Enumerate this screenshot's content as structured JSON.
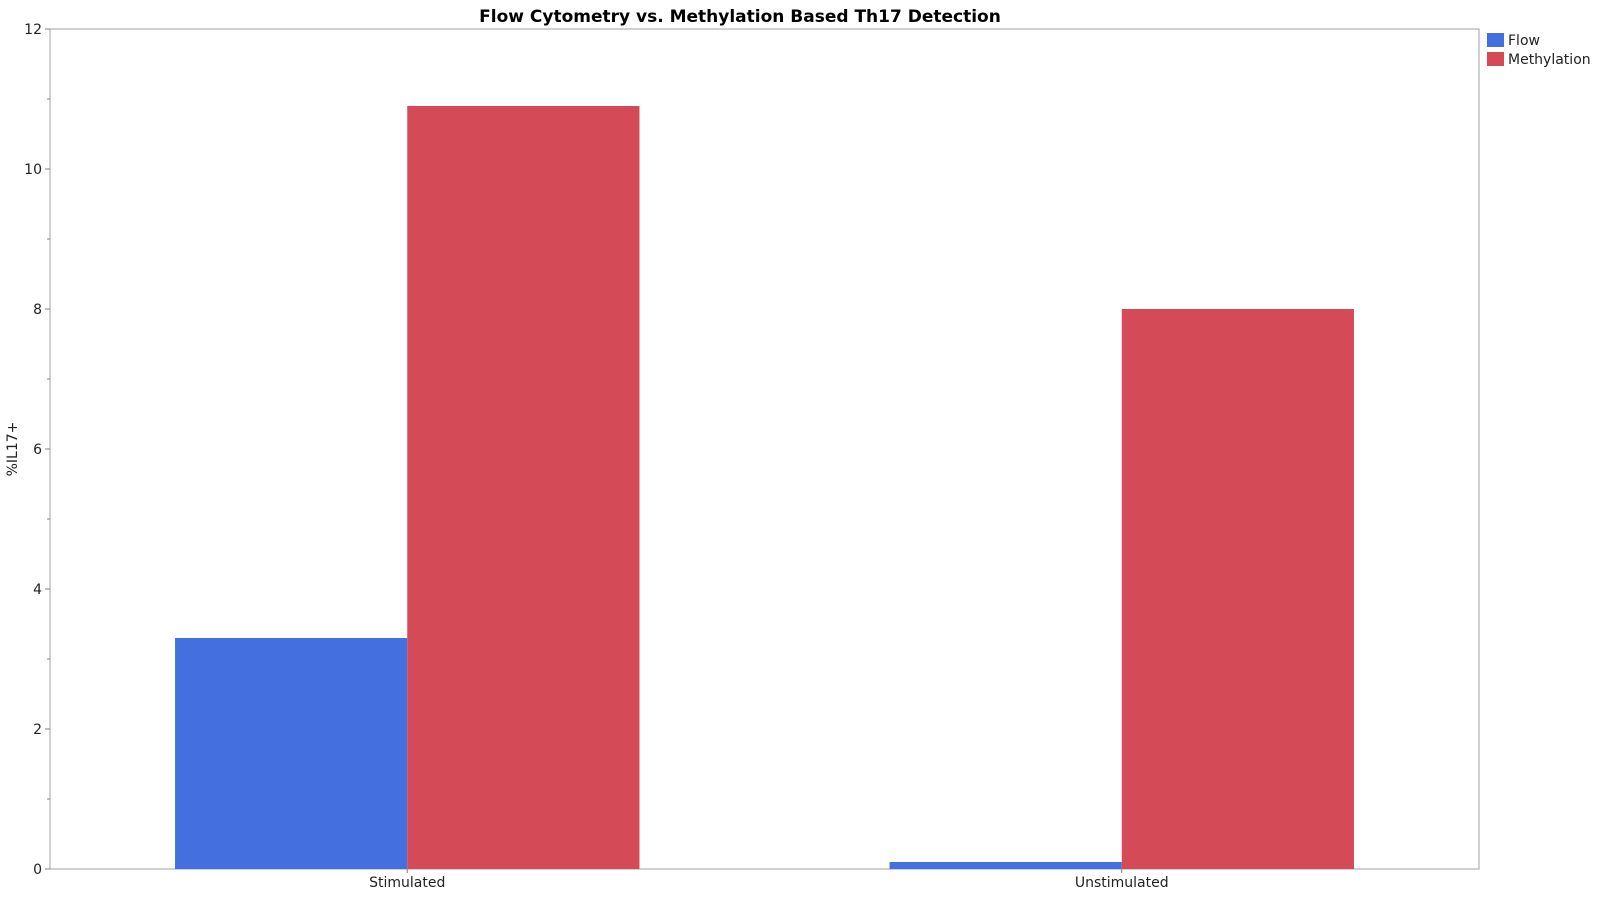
{
  "chart_data": {
    "type": "bar",
    "title": "Flow Cytometry vs. Methylation Based Th17 Detection",
    "xlabel": "",
    "ylabel": "%IL17+",
    "categories": [
      "Stimulated",
      "Unstimulated"
    ],
    "series": [
      {
        "name": "Flow",
        "color": "#4370DE",
        "values": [
          3.3,
          0.1
        ]
      },
      {
        "name": "Methylation",
        "color": "#D44A57",
        "values": [
          10.9,
          8.0
        ]
      }
    ],
    "ylim": [
      0,
      12
    ],
    "yticks": [
      0,
      2,
      4,
      6,
      8,
      10,
      12
    ],
    "grid": false,
    "legend": "top-right"
  }
}
